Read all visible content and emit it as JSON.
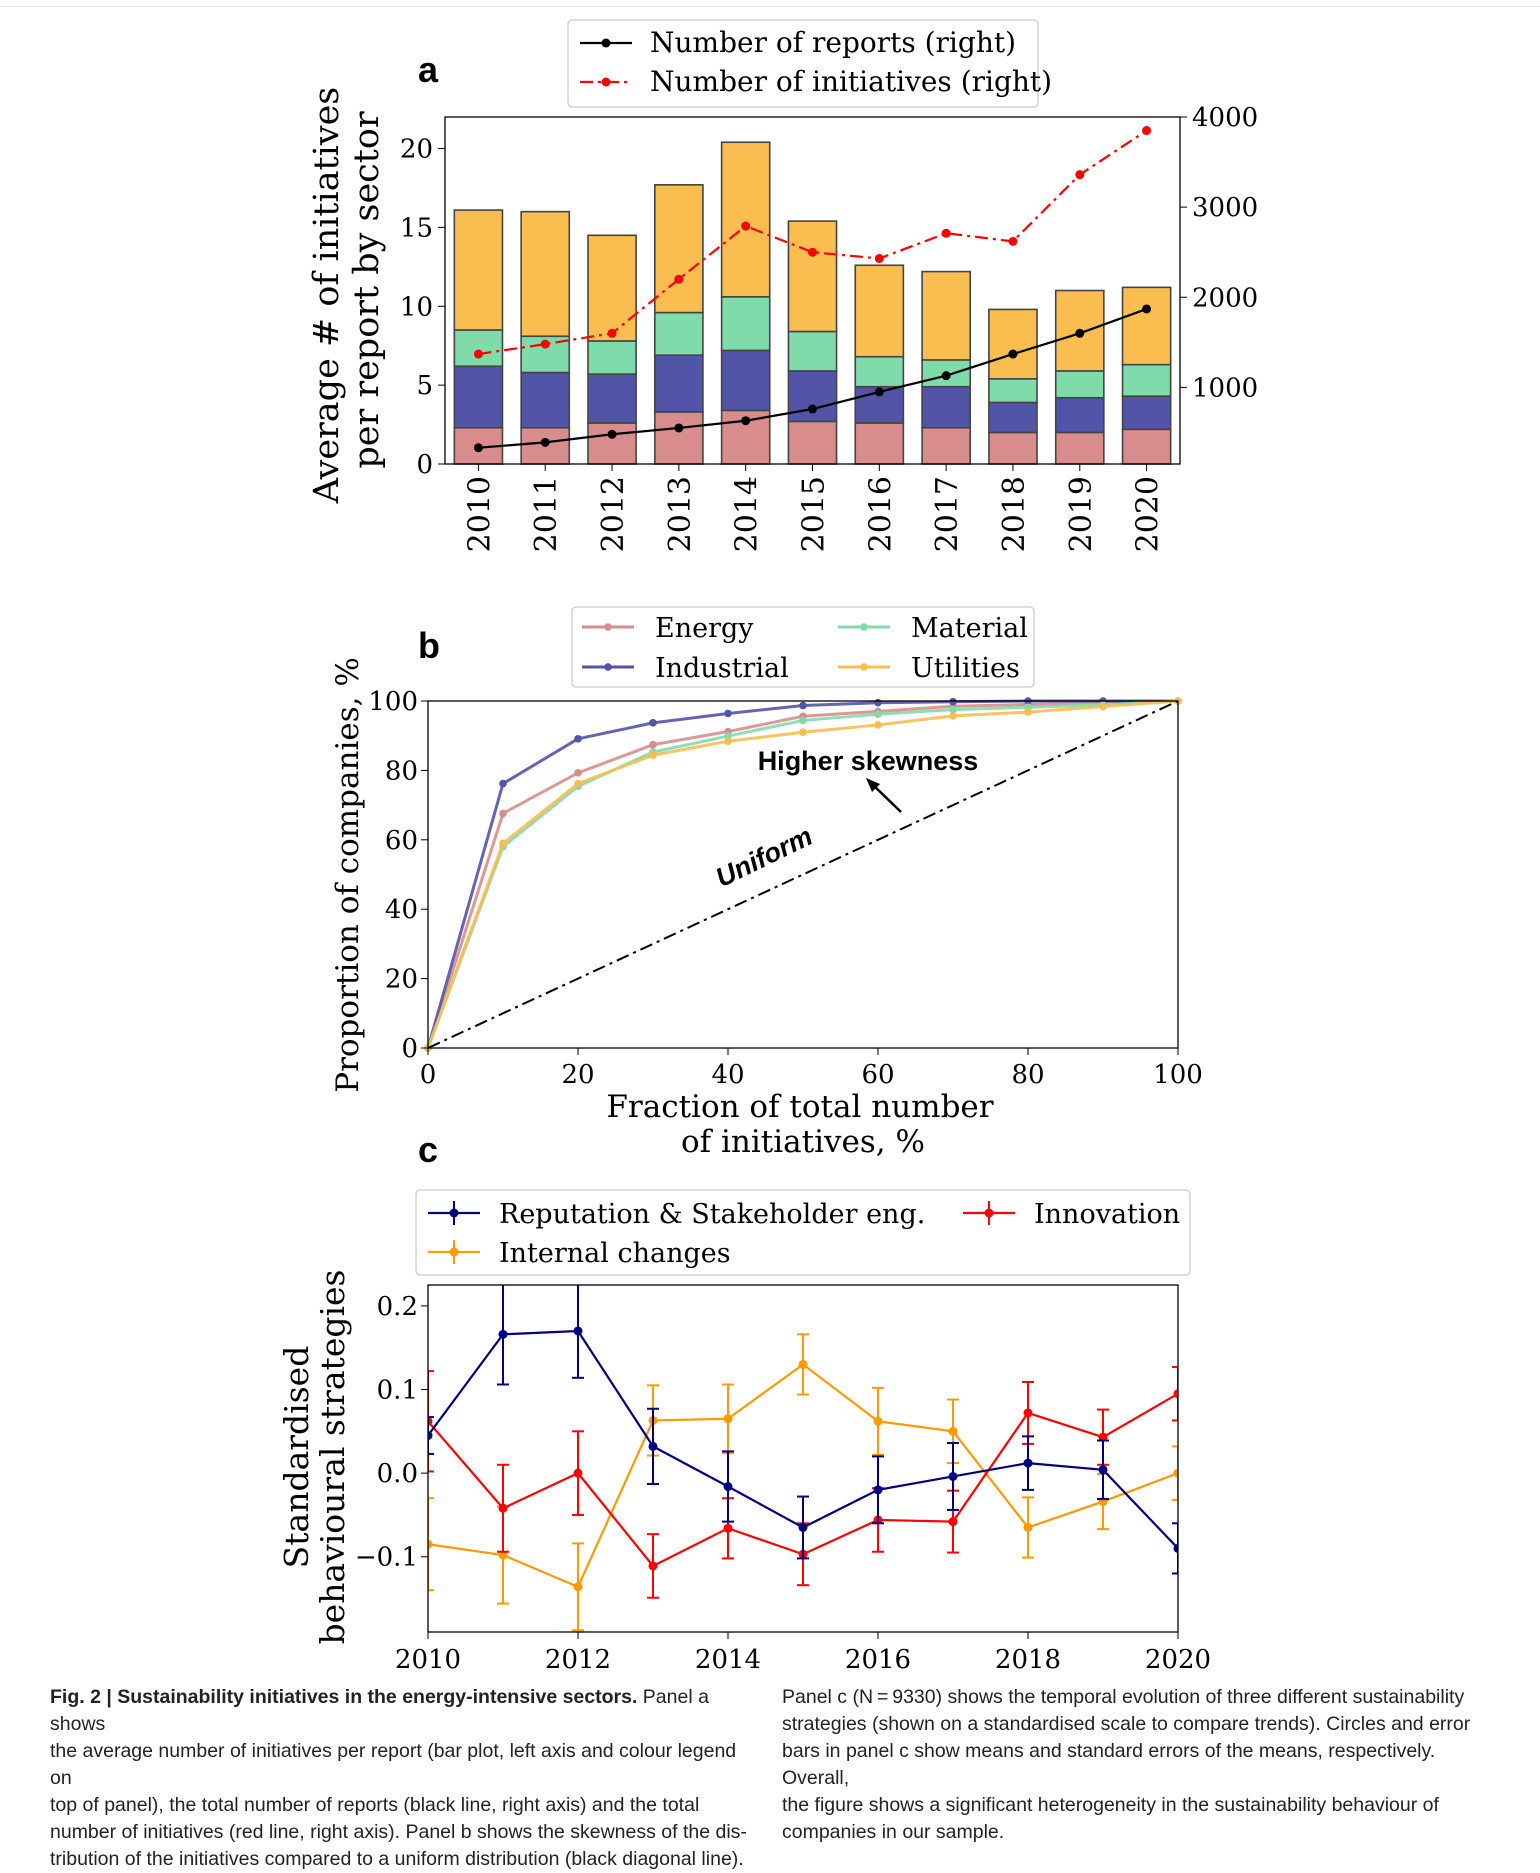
{
  "figure": {
    "panel_a": {
      "label": "a",
      "legend": [
        "Number of reports (right)",
        "Number of initiatives (right)"
      ],
      "ylabel_line1": "Average # of initiatives",
      "ylabel_line2": "per report by sector"
    },
    "panel_b": {
      "label": "b",
      "legend": [
        "Energy",
        "Industrial",
        "Material",
        "Utilities"
      ],
      "ylabel": "Proportion of companies, %",
      "xlabel_line1": "Fraction of total number",
      "xlabel_line2": "of initiatives, %",
      "annotation_skew": "Higher skewness",
      "annotation_uniform": "Uniform"
    },
    "panel_c": {
      "label": "c",
      "legend": [
        "Reputation & Stakeholder eng.",
        "Innovation",
        "Internal changes"
      ],
      "ylabel_line1": "Standardised",
      "ylabel_line2": "behavioural strategies"
    }
  },
  "chart_data": [
    {
      "type": "bar",
      "stacked": true,
      "categories": [
        "2010",
        "2011",
        "2012",
        "2013",
        "2014",
        "2015",
        "2016",
        "2017",
        "2018",
        "2019",
        "2020"
      ],
      "series": [
        {
          "values": [
            2.3,
            2.3,
            2.6,
            3.3,
            3.4,
            2.7,
            2.6,
            2.3,
            2.0,
            2.0,
            2.2
          ],
          "color": "#d98c8c"
        },
        {
          "values": [
            3.9,
            3.5,
            3.1,
            3.6,
            3.8,
            3.2,
            2.3,
            2.6,
            1.9,
            2.2,
            2.1
          ],
          "color": "#5254a8"
        },
        {
          "values": [
            2.3,
            2.3,
            2.1,
            2.7,
            3.4,
            2.5,
            1.9,
            1.7,
            1.5,
            1.7,
            2.0
          ],
          "color": "#7fdcaa"
        },
        {
          "values": [
            7.6,
            7.9,
            6.7,
            8.1,
            9.8,
            7.0,
            5.8,
            5.6,
            4.4,
            5.1,
            4.9
          ],
          "color": "#f9bd50"
        }
      ],
      "ylim": [
        0,
        22
      ],
      "yticks": [
        0,
        5,
        10,
        15,
        20
      ],
      "y2lim": [
        150,
        4000
      ],
      "y2ticks": [
        1000,
        2000,
        3000,
        4000
      ],
      "lines_right_axis": [
        {
          "name": "Number of reports (right)",
          "color": "#000000",
          "style": "solid",
          "values": [
            330,
            390,
            480,
            550,
            630,
            760,
            950,
            1130,
            1370,
            1600,
            1870
          ]
        },
        {
          "name": "Number of initiatives (right)",
          "color": "#ff0000",
          "style": "dashdot",
          "values": [
            1370,
            1480,
            1600,
            2200,
            2790,
            2500,
            2430,
            2710,
            2620,
            3360,
            3850
          ]
        }
      ],
      "legend_position": "top"
    },
    {
      "type": "line",
      "x": [
        0,
        10,
        20,
        30,
        40,
        50,
        60,
        70,
        80,
        90,
        100
      ],
      "series": [
        {
          "name": "Energy",
          "color": "#d98c8c",
          "values": [
            0,
            67.6,
            79.3,
            87.4,
            91.2,
            95.6,
            97.0,
            98.5,
            99.0,
            99.5,
            100
          ]
        },
        {
          "name": "Industrial",
          "color": "#5254a8",
          "values": [
            0,
            76.2,
            89.1,
            93.7,
            96.4,
            98.7,
            99.5,
            99.8,
            100,
            100,
            100
          ]
        },
        {
          "name": "Material",
          "color": "#7fdcaa",
          "values": [
            0,
            58.0,
            75.4,
            85.3,
            89.9,
            94.4,
            96.2,
            97.5,
            98.2,
            98.9,
            100
          ]
        },
        {
          "name": "Utilities",
          "color": "#f9bd50",
          "values": [
            0,
            59.0,
            76.2,
            84.4,
            88.4,
            91.0,
            93.1,
            95.7,
            96.8,
            98.4,
            100
          ]
        },
        {
          "name": "Uniform",
          "color": "#000000",
          "style": "dashdot",
          "values": [
            0,
            10,
            20,
            30,
            40,
            50,
            60,
            70,
            80,
            90,
            100
          ]
        }
      ],
      "xlim": [
        0,
        100
      ],
      "ylim": [
        0,
        100
      ],
      "xticks": [
        0,
        20,
        40,
        60,
        80,
        100
      ],
      "yticks": [
        0,
        20,
        40,
        60,
        80,
        100
      ],
      "legend_position": "top"
    },
    {
      "type": "line",
      "errorbars": true,
      "x": [
        2010,
        2011,
        2012,
        2013,
        2014,
        2015,
        2016,
        2017,
        2018,
        2019,
        2020
      ],
      "series": [
        {
          "name": "Reputation & Stakeholder eng.",
          "color": "#000080",
          "values": [
            0.045,
            0.166,
            0.17,
            0.032,
            -0.016,
            -0.065,
            -0.02,
            -0.004,
            0.012,
            0.004,
            -0.09
          ],
          "errors": [
            0.022,
            0.06,
            0.056,
            0.045,
            0.042,
            0.037,
            0.04,
            0.04,
            0.032,
            0.035,
            0.03
          ]
        },
        {
          "name": "Innovation",
          "color": "#ff0000",
          "values": [
            0.062,
            -0.042,
            0.0,
            -0.111,
            -0.066,
            -0.097,
            -0.056,
            -0.058,
            0.072,
            0.043,
            0.095
          ],
          "errors": [
            0.06,
            0.052,
            0.05,
            0.038,
            0.036,
            0.037,
            0.038,
            0.037,
            0.037,
            0.033,
            0.032
          ]
        },
        {
          "name": "Internal changes",
          "color": "#ff9900",
          "values": [
            -0.085,
            -0.098,
            -0.136,
            0.063,
            0.065,
            0.13,
            0.062,
            0.05,
            -0.065,
            -0.034,
            0.0
          ],
          "errors": [
            0.055,
            0.058,
            0.052,
            0.042,
            0.041,
            0.036,
            0.04,
            0.038,
            0.036,
            0.033,
            0.032
          ]
        }
      ],
      "xlim": [
        2010,
        2020
      ],
      "ylim": [
        -0.19,
        0.225
      ],
      "xticks": [
        2010,
        2012,
        2014,
        2016,
        2018,
        2020
      ],
      "yticks": [
        -0.1,
        0.0,
        0.1,
        0.2
      ],
      "ytick_labels": [
        "−0.1",
        "0.0",
        "0.1",
        "0.2"
      ],
      "legend_position": "top"
    }
  ],
  "caption": {
    "fig_label": "Fig. 2 | Sustainability initiatives in the energy-intensive sectors.",
    "left_lines": [
      "the average number of initiatives per report (bar plot, left axis and colour legend on",
      "top of panel), the total number of reports (black line, right axis) and the total",
      "number of initiatives (red line, right axis). Panel b shows the skewness of the dis-",
      "tribution of the initiatives compared to a uniform distribution (black diagonal line)."
    ],
    "left_first_suffix": " Panel a shows",
    "right_lines": [
      "Panel c (N = 9330) shows the temporal evolution of three different sustainability",
      "strategies (shown on a standardised scale to compare trends). Circles and error",
      "bars in panel c show means and standard errors of the means, respectively. Overall,",
      "the figure shows a significant heterogeneity in the sustainability behaviour of",
      "companies in our sample."
    ]
  }
}
